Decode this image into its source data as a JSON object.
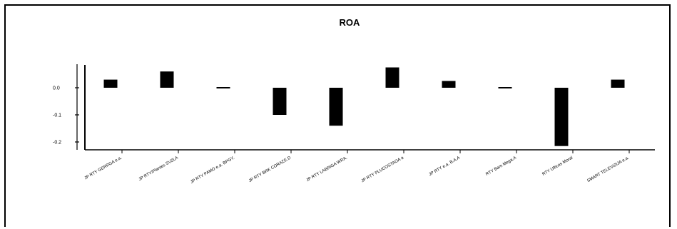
{
  "chart_data": {
    "type": "bar",
    "title": "ROA",
    "xlabel": "",
    "ylabel": "",
    "ylim": [
      -0.215,
      0.085
    ],
    "yticks": [
      0.0,
      -0.1,
      -0.2
    ],
    "ytick_labels": [
      "0.0",
      "-0.1",
      "-0.2"
    ],
    "grid": false,
    "legend": "none",
    "bar_color": "#000000",
    "categories": [
      "JP RTY GERRGA e.a.",
      "JP RTY/Plantes SVZLA",
      "JP RTY PAMO e.a. BPGY.",
      "JP RTY BRK CORAZE.D",
      "JP RTY LABRIGA WRA.",
      "JP RTY PLUCOSTAOA a",
      "JP RTY e.a. B.A.A",
      "RTY Bam Mega.A",
      "RTY Ulticos Moral",
      "SMART TELEVIZIJA e.a."
    ],
    "values": [
      0.03,
      0.06,
      0.004,
      -0.1,
      -0.14,
      0.075,
      0.025,
      0.004,
      -0.215,
      0.03
    ]
  }
}
